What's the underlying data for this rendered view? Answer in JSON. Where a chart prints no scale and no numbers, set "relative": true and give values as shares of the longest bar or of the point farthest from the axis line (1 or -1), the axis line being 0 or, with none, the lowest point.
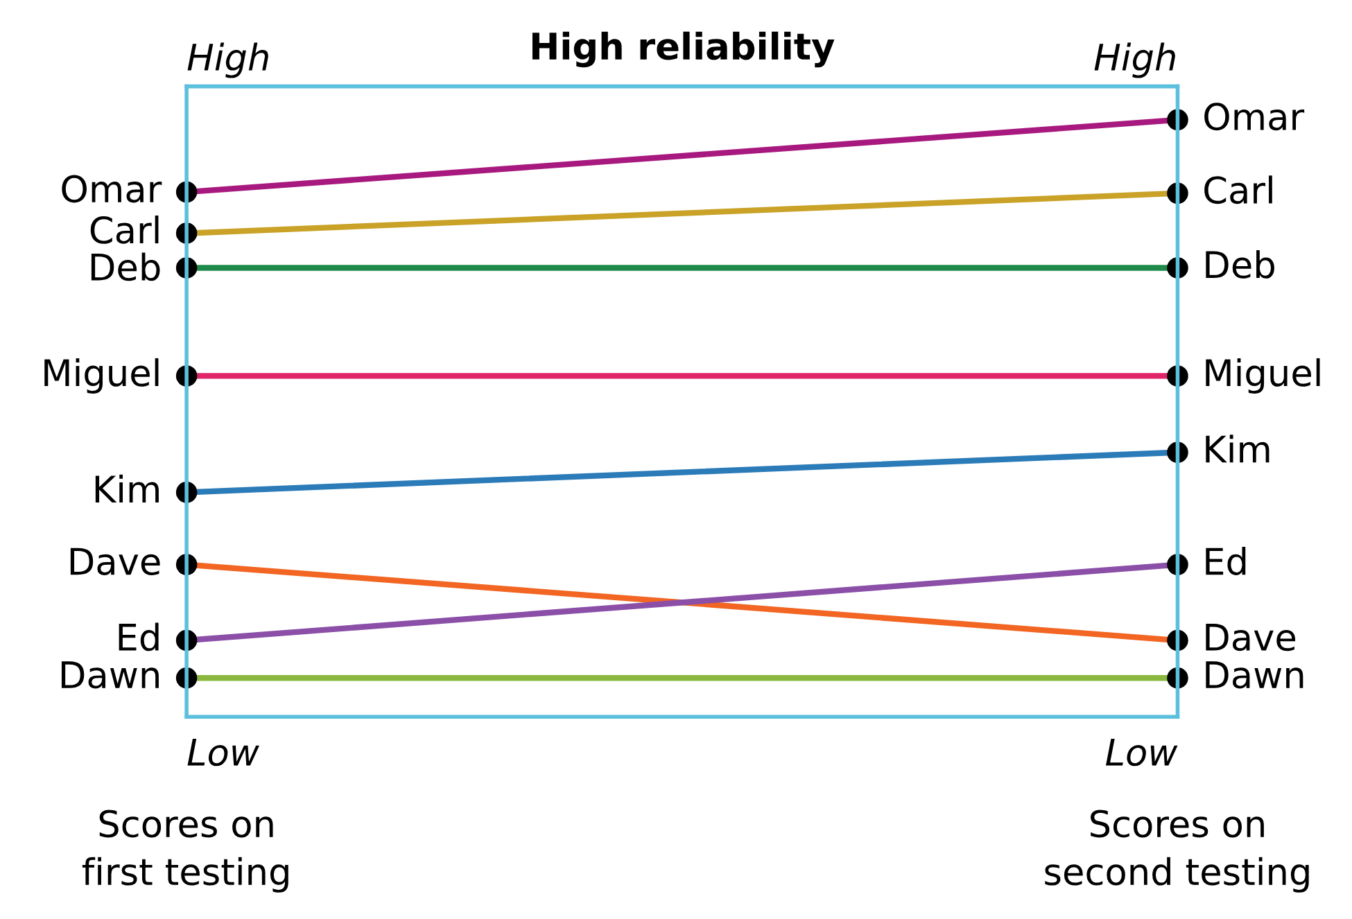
{
  "chart_data": {
    "type": "line",
    "title": "High reliability",
    "relative": true,
    "categories": [
      "Scores on\nfirst testing",
      "Scores on\nsecond testing"
    ],
    "annotations": [
      "High",
      "High",
      "Low",
      "Low"
    ],
    "marker": "circle",
    "legend": false,
    "tick_labels": "x",
    "series": [
      {
        "name": "Omar",
        "color": "#a8197f",
        "values": [
          0.879,
          1.0
        ]
      },
      {
        "name": "Carl",
        "color": "#c9a227",
        "values": [
          0.81,
          0.877
        ]
      },
      {
        "name": "Deb",
        "color": "#1e8a4a",
        "values": [
          0.752,
          0.752
        ]
      },
      {
        "name": "Miguel",
        "color": "#e0246a",
        "values": [
          0.571,
          0.571
        ]
      },
      {
        "name": "Kim",
        "color": "#2b7bb9",
        "values": [
          0.376,
          0.443
        ]
      },
      {
        "name": "Dave",
        "color": "#f26522",
        "values": [
          0.255,
          0.128
        ]
      },
      {
        "name": "Ed",
        "color": "#8b4fa8",
        "values": [
          0.128,
          0.255
        ]
      },
      {
        "name": "Dawn",
        "color": "#8ab83f",
        "values": [
          0.065,
          0.065
        ]
      }
    ]
  }
}
